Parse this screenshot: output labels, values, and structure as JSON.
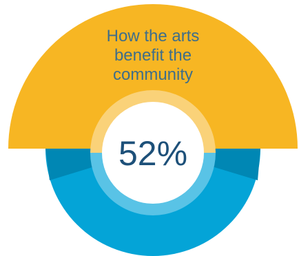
{
  "infographic": {
    "title_lines": [
      "How the arts",
      "benefit the",
      "community"
    ],
    "percentage_label": "52%",
    "percentage_value": 52
  },
  "colors": {
    "background": "#ffffff",
    "top_semicircle": "#F7B623",
    "bottom_circle": "#04A4D7",
    "bottom_dark_segment": "#0087B4",
    "inner_ring_yellow": "#FAD279",
    "inner_ring_blue": "#59C3E6",
    "center_circle": "#ffffff",
    "title_text": "#3F6E89",
    "percentage_text": "#1D5079"
  }
}
